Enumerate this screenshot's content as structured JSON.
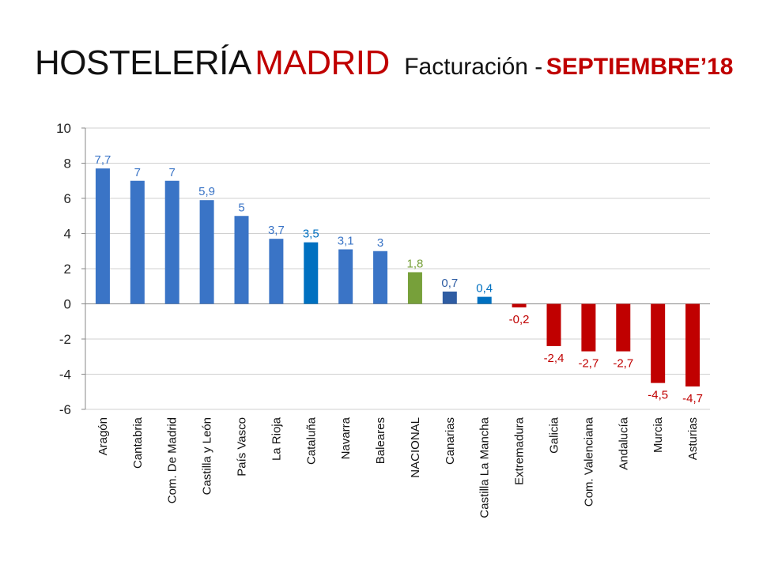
{
  "title": {
    "part1": "HOSTELERÍA",
    "part2": "MADRID",
    "part3": "Facturación -",
    "part4": "SEPTIEMBRE’18"
  },
  "colors": {
    "positive": "#3a74c6",
    "highlight": "#0070c0",
    "national": "#77a03a",
    "negative": "#c00000",
    "grid": "#d0d0d0"
  },
  "chart_data": {
    "type": "bar",
    "title": "",
    "xlabel": "",
    "ylabel": "",
    "ylim": [
      -6,
      10
    ],
    "yticks": [
      10,
      8,
      6,
      4,
      2,
      0,
      -2,
      -4,
      -6
    ],
    "grid": true,
    "legend": "none",
    "categories": [
      "Aragón",
      "Cantabria",
      "Com. De Madrid",
      "Castilla y León",
      "País Vasco",
      "La Rioja",
      "Cataluña",
      "Navarra",
      "Baleares",
      "NACIONAL",
      "Canarias",
      "Castilla La Mancha",
      "Extremadura",
      "Galicia",
      "Com. Valenciana",
      "Andalucía",
      "Murcia",
      "Asturias"
    ],
    "values": [
      7.7,
      7,
      7,
      5.9,
      5,
      3.7,
      3.5,
      3.1,
      3,
      1.8,
      0.7,
      0.4,
      -0.2,
      -2.4,
      -2.7,
      -2.7,
      -4.5,
      -4.7
    ],
    "labels": [
      "7,7",
      "7",
      "7",
      "5,9",
      "5",
      "3,7",
      "3,5",
      "3,1",
      "3",
      "1,8",
      "0,7",
      "0,4",
      "-0,2",
      "-2,4",
      "-2,7",
      "-2,7",
      "-4,5",
      "-4,7"
    ],
    "bar_colors": [
      "#3a74c6",
      "#3a74c6",
      "#3a74c6",
      "#3a74c6",
      "#3a74c6",
      "#3a74c6",
      "#0070c0",
      "#3a74c6",
      "#3a74c6",
      "#77a03a",
      "#2f5da3",
      "#0070c0",
      "#c00000",
      "#c00000",
      "#c00000",
      "#c00000",
      "#c00000",
      "#c00000"
    ]
  }
}
